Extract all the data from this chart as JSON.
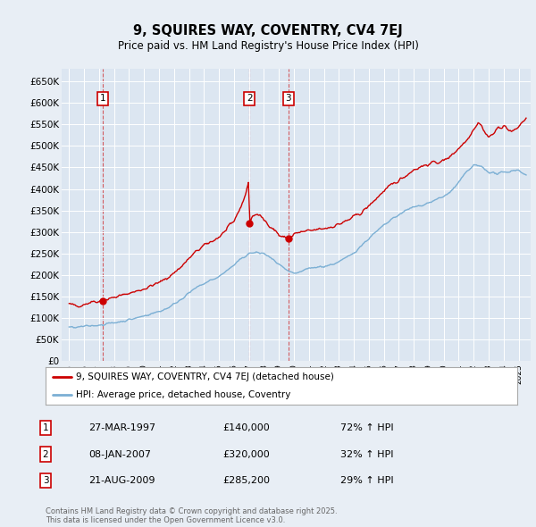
{
  "title": "9, SQUIRES WAY, COVENTRY, CV4 7EJ",
  "subtitle": "Price paid vs. HM Land Registry's House Price Index (HPI)",
  "background_color": "#e8eef5",
  "plot_bg_color": "#dce6f1",
  "grid_color": "#ffffff",
  "ylim": [
    0,
    680000
  ],
  "yticks": [
    0,
    50000,
    100000,
    150000,
    200000,
    250000,
    300000,
    350000,
    400000,
    450000,
    500000,
    550000,
    600000,
    650000
  ],
  "ytick_labels": [
    "£0",
    "£50K",
    "£100K",
    "£150K",
    "£200K",
    "£250K",
    "£300K",
    "£350K",
    "£400K",
    "£450K",
    "£500K",
    "£550K",
    "£600K",
    "£650K"
  ],
  "xlim_start": 1994.5,
  "xlim_end": 2025.8,
  "xticks": [
    1995,
    1996,
    1997,
    1998,
    1999,
    2000,
    2001,
    2002,
    2003,
    2004,
    2005,
    2006,
    2007,
    2008,
    2009,
    2010,
    2011,
    2012,
    2013,
    2014,
    2015,
    2016,
    2017,
    2018,
    2019,
    2020,
    2021,
    2022,
    2023,
    2024,
    2025
  ],
  "transactions": [
    {
      "num": 1,
      "date": "27-MAR-1997",
      "year": 1997.23,
      "price": 140000,
      "hpi_pct": "72% ↑ HPI"
    },
    {
      "num": 2,
      "date": "08-JAN-2007",
      "year": 2007.03,
      "price": 320000,
      "hpi_pct": "32% ↑ HPI"
    },
    {
      "num": 3,
      "date": "21-AUG-2009",
      "year": 2009.64,
      "price": 285200,
      "hpi_pct": "29% ↑ HPI"
    }
  ],
  "legend_line1": "9, SQUIRES WAY, COVENTRY, CV4 7EJ (detached house)",
  "legend_line2": "HPI: Average price, detached house, Coventry",
  "footer": "Contains HM Land Registry data © Crown copyright and database right 2025.\nThis data is licensed under the Open Government Licence v3.0.",
  "line_red_color": "#cc0000",
  "line_blue_color": "#7bafd4",
  "marker_box_color": "#cc0000",
  "red_keypoints": [
    [
      1995.0,
      132000
    ],
    [
      1995.5,
      128000
    ],
    [
      1996.0,
      132000
    ],
    [
      1996.5,
      138000
    ],
    [
      1997.23,
      140000
    ],
    [
      1997.5,
      143000
    ],
    [
      1998.0,
      148000
    ],
    [
      1998.5,
      152000
    ],
    [
      1999.0,
      158000
    ],
    [
      1999.5,
      162000
    ],
    [
      2000.0,
      168000
    ],
    [
      2000.5,
      175000
    ],
    [
      2001.0,
      182000
    ],
    [
      2001.5,
      192000
    ],
    [
      2002.0,
      205000
    ],
    [
      2002.5,
      220000
    ],
    [
      2003.0,
      238000
    ],
    [
      2003.5,
      255000
    ],
    [
      2004.0,
      268000
    ],
    [
      2004.5,
      278000
    ],
    [
      2005.0,
      288000
    ],
    [
      2005.5,
      305000
    ],
    [
      2006.0,
      325000
    ],
    [
      2006.5,
      362000
    ],
    [
      2006.8,
      390000
    ],
    [
      2007.0,
      420000
    ],
    [
      2007.03,
      320000
    ],
    [
      2007.2,
      335000
    ],
    [
      2007.5,
      342000
    ],
    [
      2007.8,
      335000
    ],
    [
      2008.0,
      328000
    ],
    [
      2008.3,
      318000
    ],
    [
      2008.6,
      308000
    ],
    [
      2008.9,
      298000
    ],
    [
      2009.0,
      292000
    ],
    [
      2009.3,
      288000
    ],
    [
      2009.64,
      285200
    ],
    [
      2009.9,
      290000
    ],
    [
      2010.0,
      295000
    ],
    [
      2010.3,
      298000
    ],
    [
      2010.6,
      300000
    ],
    [
      2011.0,
      302000
    ],
    [
      2011.5,
      305000
    ],
    [
      2012.0,
      308000
    ],
    [
      2012.5,
      312000
    ],
    [
      2013.0,
      318000
    ],
    [
      2013.5,
      325000
    ],
    [
      2014.0,
      335000
    ],
    [
      2014.5,
      345000
    ],
    [
      2015.0,
      360000
    ],
    [
      2015.5,
      378000
    ],
    [
      2016.0,
      395000
    ],
    [
      2016.5,
      408000
    ],
    [
      2017.0,
      420000
    ],
    [
      2017.5,
      432000
    ],
    [
      2018.0,
      445000
    ],
    [
      2018.5,
      452000
    ],
    [
      2019.0,
      458000
    ],
    [
      2019.5,
      462000
    ],
    [
      2020.0,
      465000
    ],
    [
      2020.5,
      478000
    ],
    [
      2021.0,
      495000
    ],
    [
      2021.5,
      512000
    ],
    [
      2022.0,
      540000
    ],
    [
      2022.3,
      555000
    ],
    [
      2022.5,
      548000
    ],
    [
      2022.7,
      535000
    ],
    [
      2023.0,
      520000
    ],
    [
      2023.3,
      528000
    ],
    [
      2023.6,
      540000
    ],
    [
      2024.0,
      548000
    ],
    [
      2024.3,
      538000
    ],
    [
      2024.6,
      532000
    ],
    [
      2025.0,
      545000
    ],
    [
      2025.5,
      565000
    ]
  ],
  "blue_keypoints": [
    [
      1995.0,
      78000
    ],
    [
      1995.5,
      78000
    ],
    [
      1996.0,
      80000
    ],
    [
      1996.5,
      82000
    ],
    [
      1997.0,
      84000
    ],
    [
      1997.5,
      86000
    ],
    [
      1998.0,
      89000
    ],
    [
      1998.5,
      92000
    ],
    [
      1999.0,
      96000
    ],
    [
      1999.5,
      100000
    ],
    [
      2000.0,
      105000
    ],
    [
      2000.5,
      110000
    ],
    [
      2001.0,
      115000
    ],
    [
      2001.5,
      122000
    ],
    [
      2002.0,
      132000
    ],
    [
      2002.5,
      145000
    ],
    [
      2003.0,
      158000
    ],
    [
      2003.5,
      170000
    ],
    [
      2004.0,
      180000
    ],
    [
      2004.5,
      188000
    ],
    [
      2005.0,
      196000
    ],
    [
      2005.5,
      210000
    ],
    [
      2006.0,
      222000
    ],
    [
      2006.5,
      238000
    ],
    [
      2007.0,
      250000
    ],
    [
      2007.5,
      252000
    ],
    [
      2008.0,
      250000
    ],
    [
      2008.5,
      238000
    ],
    [
      2009.0,
      225000
    ],
    [
      2009.5,
      210000
    ],
    [
      2010.0,
      202000
    ],
    [
      2010.5,
      208000
    ],
    [
      2011.0,
      215000
    ],
    [
      2011.5,
      218000
    ],
    [
      2012.0,
      220000
    ],
    [
      2012.5,
      224000
    ],
    [
      2013.0,
      230000
    ],
    [
      2013.5,
      240000
    ],
    [
      2014.0,
      252000
    ],
    [
      2014.5,
      268000
    ],
    [
      2015.0,
      285000
    ],
    [
      2015.5,
      300000
    ],
    [
      2016.0,
      315000
    ],
    [
      2016.5,
      328000
    ],
    [
      2017.0,
      340000
    ],
    [
      2017.5,
      350000
    ],
    [
      2018.0,
      358000
    ],
    [
      2018.5,
      362000
    ],
    [
      2019.0,
      368000
    ],
    [
      2019.5,
      375000
    ],
    [
      2020.0,
      382000
    ],
    [
      2020.5,
      395000
    ],
    [
      2021.0,
      415000
    ],
    [
      2021.5,
      438000
    ],
    [
      2022.0,
      455000
    ],
    [
      2022.5,
      452000
    ],
    [
      2023.0,
      440000
    ],
    [
      2023.5,
      435000
    ],
    [
      2024.0,
      438000
    ],
    [
      2024.5,
      442000
    ],
    [
      2025.0,
      445000
    ],
    [
      2025.5,
      430000
    ]
  ]
}
